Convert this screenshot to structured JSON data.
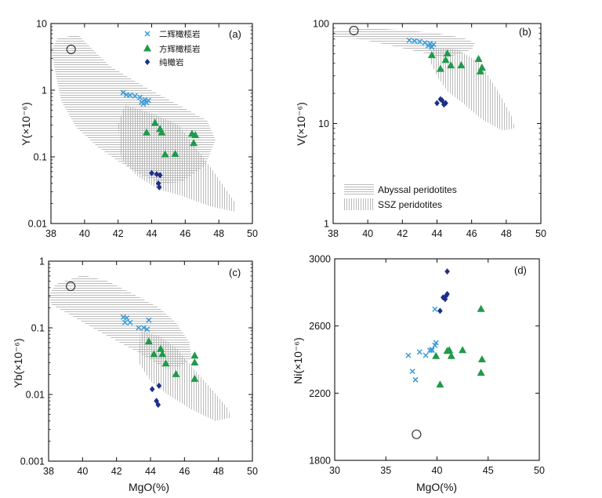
{
  "figure": {
    "description_labels": {
      "legend_harzburgite": "二辉橄榄岩",
      "legend_lherzolite": "方辉橄榄岩",
      "legend_dunite": "纯橄岩",
      "field_abyssal": "Abyssal peridotites",
      "field_ssz": "SSZ peridotites"
    },
    "colors": {
      "lherzolite": "#3a9bd8",
      "harzburgite": "#1f9a4a",
      "dunite": "#1b2f8a",
      "field": "#b5b5b5"
    }
  },
  "chart_data": [
    {
      "id": "a",
      "type": "scatter",
      "panel_label": "(a)",
      "title": "",
      "xlabel": "",
      "ylabel": "Y(×10⁻⁶)",
      "xscale": "linear",
      "yscale": "log",
      "xlim": [
        38,
        50
      ],
      "ylim": [
        0.01,
        10
      ],
      "xticks": [
        38,
        40,
        42,
        44,
        46,
        48,
        50
      ],
      "xtick_labels": [
        "38",
        "40",
        "42",
        "44",
        "46",
        "48",
        "50"
      ],
      "yticks": [
        0.01,
        0.1,
        1,
        10
      ],
      "ytick_labels": [
        "0.01",
        "0.1",
        "1",
        "10"
      ],
      "legend": {
        "placement": "top-center",
        "entries": [
          {
            "marker": "x",
            "label": "二辉橄榄岩"
          },
          {
            "marker": "triangle",
            "label": "方辉橄榄岩"
          },
          {
            "marker": "diamond",
            "label": "纯橄岩"
          }
        ]
      },
      "series": [
        {
          "name": "二辉橄榄岩",
          "marker": "x",
          "points": [
            [
              42.3,
              0.92
            ],
            [
              42.5,
              0.85
            ],
            [
              42.7,
              0.84
            ],
            [
              43.0,
              0.82
            ],
            [
              43.3,
              0.78
            ],
            [
              43.6,
              0.72
            ],
            [
              43.5,
              0.62
            ],
            [
              43.7,
              0.65
            ],
            [
              43.8,
              0.7
            ],
            [
              43.4,
              0.66
            ]
          ]
        },
        {
          "name": "方辉橄榄岩",
          "marker": "triangle",
          "points": [
            [
              43.7,
              0.23
            ],
            [
              44.2,
              0.32
            ],
            [
              44.5,
              0.26
            ],
            [
              44.6,
              0.23
            ],
            [
              44.8,
              0.108
            ],
            [
              45.4,
              0.11
            ],
            [
              46.4,
              0.22
            ],
            [
              46.6,
              0.21
            ],
            [
              46.5,
              0.16
            ]
          ]
        },
        {
          "name": "纯橄岩",
          "marker": "diamond",
          "points": [
            [
              44.0,
              0.057
            ],
            [
              44.3,
              0.055
            ],
            [
              44.5,
              0.053
            ],
            [
              44.4,
              0.04
            ],
            [
              44.45,
              0.035
            ]
          ]
        },
        {
          "name": "reference",
          "marker": "circle",
          "points": [
            [
              39.2,
              4.1
            ]
          ]
        }
      ],
      "fields": [
        {
          "name": "Abyssal peridotites",
          "style": "horizontal-hatch",
          "polygon": [
            [
              38,
              4
            ],
            [
              38.4,
              6
            ],
            [
              39.6,
              6.8
            ],
            [
              41.5,
              2.3
            ],
            [
              43.5,
              1.15
            ],
            [
              45.5,
              0.62
            ],
            [
              47.3,
              0.35
            ],
            [
              47.8,
              0.18
            ],
            [
              47.2,
              0.075
            ],
            [
              45.8,
              0.042
            ],
            [
              44.6,
              0.04
            ],
            [
              43.5,
              0.052
            ],
            [
              42.2,
              0.08
            ],
            [
              40.8,
              0.14
            ],
            [
              39.5,
              0.28
            ],
            [
              38.6,
              0.7
            ]
          ]
        },
        {
          "name": "SSZ peridotites",
          "style": "vertical-hatch",
          "polygon": [
            [
              42.4,
              0.6
            ],
            [
              44.0,
              0.45
            ],
            [
              45.6,
              0.3
            ],
            [
              46.6,
              0.14
            ],
            [
              47.7,
              0.06
            ],
            [
              49.0,
              0.02
            ],
            [
              49.0,
              0.015
            ],
            [
              47.5,
              0.018
            ],
            [
              45.8,
              0.026
            ],
            [
              44.5,
              0.032
            ],
            [
              43.2,
              0.05
            ],
            [
              42.2,
              0.09
            ],
            [
              42.0,
              0.3
            ]
          ]
        }
      ]
    },
    {
      "id": "b",
      "type": "scatter",
      "panel_label": "(b)",
      "title": "",
      "xlabel": "",
      "ylabel": "V(×10⁻⁶)",
      "xscale": "linear",
      "yscale": "log",
      "xlim": [
        38,
        50
      ],
      "ylim": [
        1,
        100
      ],
      "xticks": [
        38,
        40,
        42,
        44,
        46,
        48,
        50
      ],
      "xtick_labels": [
        "38",
        "40",
        "42",
        "44",
        "46",
        "48",
        "50"
      ],
      "yticks": [
        1,
        10,
        100
      ],
      "ytick_labels": [
        "1",
        "10",
        "100"
      ],
      "legend": {
        "placement": "bottom-left",
        "entries": [
          {
            "marker": "horizontal-hatch",
            "label": "Abyssal peridotites"
          },
          {
            "marker": "vertical-hatch",
            "label": "SSZ peridotites"
          }
        ]
      },
      "series": [
        {
          "name": "二辉橄榄岩",
          "marker": "x",
          "points": [
            [
              42.4,
              68
            ],
            [
              42.7,
              67
            ],
            [
              43.0,
              66
            ],
            [
              43.3,
              64
            ],
            [
              43.6,
              63
            ],
            [
              43.8,
              62
            ],
            [
              43.5,
              60
            ],
            [
              43.7,
              58
            ]
          ]
        },
        {
          "name": "方辉橄榄岩",
          "marker": "triangle",
          "points": [
            [
              43.7,
              48
            ],
            [
              44.2,
              35
            ],
            [
              44.5,
              43
            ],
            [
              44.6,
              50
            ],
            [
              44.8,
              38
            ],
            [
              45.4,
              38
            ],
            [
              46.4,
              44
            ],
            [
              46.6,
              36
            ],
            [
              46.5,
              33
            ]
          ]
        },
        {
          "name": "纯橄岩",
          "marker": "diamond",
          "points": [
            [
              44.0,
              16
            ],
            [
              44.3,
              17
            ],
            [
              44.5,
              16
            ],
            [
              44.4,
              15.5
            ],
            [
              44.2,
              17.5
            ]
          ]
        },
        {
          "name": "reference",
          "marker": "circle",
          "points": [
            [
              39.2,
              85
            ]
          ]
        }
      ],
      "fields": [
        {
          "name": "Abyssal peridotites",
          "style": "horizontal-hatch",
          "polygon": [
            [
              38,
              84
            ],
            [
              40,
              90
            ],
            [
              42,
              86
            ],
            [
              44,
              80
            ],
            [
              45.5,
              72
            ],
            [
              46.2,
              64
            ],
            [
              46,
              55
            ],
            [
              45,
              48
            ],
            [
              44,
              47
            ],
            [
              43,
              52
            ],
            [
              41,
              62
            ],
            [
              39.5,
              70
            ],
            [
              38,
              72
            ]
          ]
        },
        {
          "name": "SSZ peridotites",
          "style": "vertical-hatch",
          "polygon": [
            [
              43.8,
              58
            ],
            [
              45.2,
              55
            ],
            [
              46.5,
              40
            ],
            [
              47.6,
              20
            ],
            [
              48.3,
              12
            ],
            [
              48.5,
              9
            ],
            [
              47.8,
              8.5
            ],
            [
              46.6,
              11
            ],
            [
              45.5,
              16
            ],
            [
              44.6,
              21
            ],
            [
              44.0,
              30
            ],
            [
              43.6,
              42
            ]
          ]
        }
      ]
    },
    {
      "id": "c",
      "type": "scatter",
      "panel_label": "(c)",
      "title": "",
      "xlabel": "MgO(%)",
      "ylabel": "Yb(×10⁻⁶)",
      "xscale": "linear",
      "yscale": "log",
      "xlim": [
        38,
        50
      ],
      "ylim": [
        0.001,
        1
      ],
      "xticks": [
        38,
        40,
        42,
        44,
        46,
        48,
        50
      ],
      "xtick_labels": [
        "38",
        "40",
        "42",
        "44",
        "46",
        "48",
        "50"
      ],
      "yticks": [
        0.001,
        0.01,
        0.1,
        1
      ],
      "ytick_labels": [
        "0.001",
        "0.01",
        "0.1",
        "1"
      ],
      "series": [
        {
          "name": "二辉橄榄岩",
          "marker": "x",
          "points": [
            [
              42.4,
              0.145
            ],
            [
              42.6,
              0.14
            ],
            [
              42.5,
              0.12
            ],
            [
              42.8,
              0.12
            ],
            [
              43.3,
              0.1
            ],
            [
              43.6,
              0.1
            ],
            [
              43.9,
              0.13
            ],
            [
              43.8,
              0.095
            ]
          ]
        },
        {
          "name": "方辉橄榄岩",
          "marker": "triangle",
          "points": [
            [
              43.9,
              0.062
            ],
            [
              44.2,
              0.04
            ],
            [
              44.6,
              0.048
            ],
            [
              44.7,
              0.04
            ],
            [
              44.9,
              0.029
            ],
            [
              45.5,
              0.02
            ],
            [
              46.6,
              0.038
            ],
            [
              46.6,
              0.03
            ],
            [
              46.6,
              0.017
            ]
          ]
        },
        {
          "name": "纯橄岩",
          "marker": "diamond",
          "points": [
            [
              44.1,
              0.012
            ],
            [
              44.5,
              0.0135
            ],
            [
              44.35,
              0.008
            ],
            [
              44.45,
              0.007
            ]
          ]
        },
        {
          "name": "reference",
          "marker": "circle",
          "points": [
            [
              39.3,
              0.42
            ]
          ]
        }
      ],
      "fields": [
        {
          "name": "Abyssal peridotites",
          "style": "horizontal-hatch",
          "polygon": [
            [
              38,
              0.3
            ],
            [
              38.4,
              0.45
            ],
            [
              40.0,
              0.62
            ],
            [
              41.5,
              0.5
            ],
            [
              43.2,
              0.3
            ],
            [
              44.5,
              0.2
            ],
            [
              45.5,
              0.12
            ],
            [
              46.3,
              0.06
            ],
            [
              46.4,
              0.035
            ],
            [
              45.6,
              0.025
            ],
            [
              44.8,
              0.025
            ],
            [
              43.5,
              0.04
            ],
            [
              42.2,
              0.06
            ],
            [
              40.6,
              0.1
            ],
            [
              39.2,
              0.16
            ],
            [
              38.2,
              0.22
            ]
          ]
        },
        {
          "name": "SSZ peridotites",
          "style": "vertical-hatch",
          "polygon": [
            [
              43.4,
              0.09
            ],
            [
              44.5,
              0.075
            ],
            [
              45.5,
              0.05
            ],
            [
              46.5,
              0.025
            ],
            [
              47.6,
              0.012
            ],
            [
              48.6,
              0.006
            ],
            [
              48.7,
              0.0045
            ],
            [
              47.8,
              0.004
            ],
            [
              46.4,
              0.006
            ],
            [
              45.0,
              0.01
            ],
            [
              44.0,
              0.016
            ],
            [
              43.3,
              0.03
            ]
          ]
        }
      ]
    },
    {
      "id": "d",
      "type": "scatter",
      "panel_label": "(d)",
      "title": "",
      "xlabel": "MgO(%)",
      "ylabel": "Ni(×10⁻⁶)",
      "xscale": "linear",
      "yscale": "linear",
      "xlim": [
        30,
        50
      ],
      "ylim": [
        1800,
        3000
      ],
      "xticks": [
        30,
        35,
        40,
        45,
        50
      ],
      "xtick_labels": [
        "30",
        "35",
        "40",
        "45",
        "50"
      ],
      "yticks": [
        1800,
        2200,
        2600,
        3000
      ],
      "ytick_labels": [
        "1800",
        "2200",
        "2600",
        "3000"
      ],
      "series": [
        {
          "name": "二辉橄榄岩",
          "marker": "x",
          "points": [
            [
              37.2,
              2425
            ],
            [
              37.6,
              2330
            ],
            [
              37.9,
              2280
            ],
            [
              38.3,
              2445
            ],
            [
              38.9,
              2425
            ],
            [
              39.3,
              2455
            ],
            [
              39.5,
              2455
            ],
            [
              39.8,
              2485
            ],
            [
              39.9,
              2500
            ],
            [
              39.8,
              2700
            ],
            [
              39.5,
              2460
            ]
          ]
        },
        {
          "name": "方辉橄榄岩",
          "marker": "triangle",
          "points": [
            [
              39.9,
              2420
            ],
            [
              40.3,
              2250
            ],
            [
              41.0,
              2450
            ],
            [
              41.2,
              2455
            ],
            [
              41.4,
              2420
            ],
            [
              42.5,
              2455
            ],
            [
              44.3,
              2700
            ],
            [
              44.4,
              2400
            ],
            [
              44.3,
              2320
            ]
          ]
        },
        {
          "name": "纯橄岩",
          "marker": "diamond",
          "points": [
            [
              40.3,
              2690
            ],
            [
              40.6,
              2770
            ],
            [
              40.9,
              2780
            ],
            [
              41.0,
              2790
            ],
            [
              40.8,
              2760
            ],
            [
              41.0,
              2925
            ]
          ]
        },
        {
          "name": "reference",
          "marker": "circle",
          "points": [
            [
              38.0,
              1955
            ]
          ]
        }
      ],
      "fields": []
    }
  ]
}
